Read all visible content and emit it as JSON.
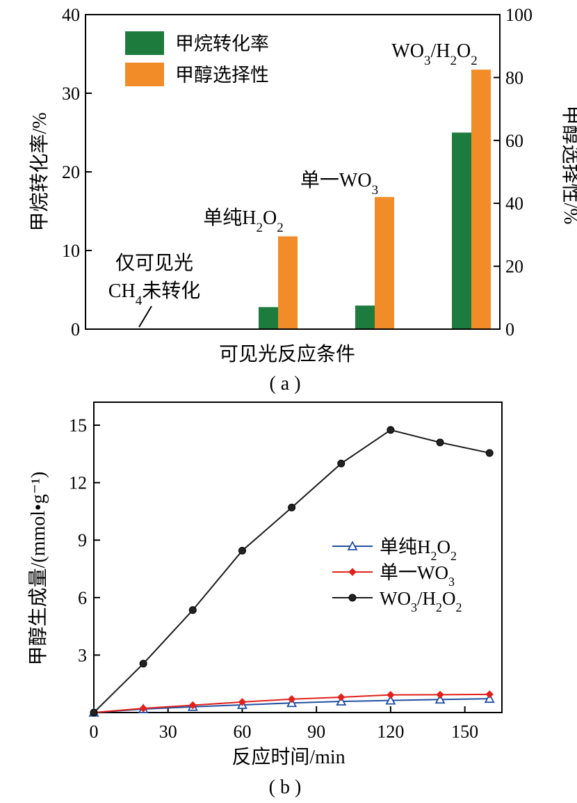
{
  "chart_data": [
    {
      "type": "bar",
      "panel_label": "( a )",
      "categories": [
        "仅可见光",
        "单纯H₂O₂",
        "单一WO₃",
        "WO₃/H₂O₂"
      ],
      "xlabel": "可见光反应条件",
      "ylabel": "甲烷转化率/%",
      "y2label": "甲醇选择性/%",
      "ylim": [
        0,
        40
      ],
      "y2lim": [
        0,
        100
      ],
      "yticks": [
        0,
        10,
        20,
        30,
        40
      ],
      "y2ticks": [
        0,
        20,
        40,
        60,
        80,
        100
      ],
      "series": [
        {
          "name": "甲烷转化率",
          "axis": "left",
          "color": "#1e7b3e",
          "values": [
            0,
            2.8,
            3.0,
            25.0
          ]
        },
        {
          "name": "甲醇选择性",
          "axis": "right",
          "color": "#f28c28",
          "values": [
            0,
            29.5,
            42.0,
            82.5
          ]
        }
      ],
      "annotations": [
        {
          "category": 0,
          "lines": [
            "仅可见光",
            "CH₄未转化"
          ]
        },
        {
          "category": 1,
          "lines": [
            "单纯H₂O₂"
          ]
        },
        {
          "category": 2,
          "lines": [
            "单一WO₃"
          ]
        },
        {
          "category": 3,
          "lines": [
            "WO₃/H₂O₂"
          ]
        }
      ],
      "legend_position": "top-left"
    },
    {
      "type": "line",
      "panel_label": "( b )",
      "xlabel": "反应时间/min",
      "ylabel": "甲醇生成量/(mmol•g⁻¹)",
      "xlim": [
        0,
        165
      ],
      "ylim": [
        0,
        16.2
      ],
      "xticks": [
        0,
        30,
        60,
        90,
        120,
        150
      ],
      "yticks": [
        3,
        6,
        9,
        12,
        15
      ],
      "x": [
        0,
        20,
        40,
        60,
        80,
        100,
        120,
        140,
        160
      ],
      "series": [
        {
          "name": "单纯H₂O₂",
          "color": "#1f4fa0",
          "marker": "triangle",
          "values": [
            0,
            0.18,
            0.3,
            0.4,
            0.5,
            0.58,
            0.63,
            0.68,
            0.72
          ]
        },
        {
          "name": "单一WO₃",
          "color": "#e0201b",
          "marker": "diamond",
          "values": [
            0,
            0.22,
            0.38,
            0.55,
            0.7,
            0.8,
            0.92,
            0.93,
            0.95
          ]
        },
        {
          "name": "WO₃/H₂O₂",
          "color": "#1a1a1a",
          "marker": "circle",
          "values": [
            0,
            2.55,
            5.35,
            8.45,
            10.7,
            13.0,
            14.75,
            14.1,
            13.55
          ]
        }
      ],
      "legend_position": "right"
    }
  ]
}
